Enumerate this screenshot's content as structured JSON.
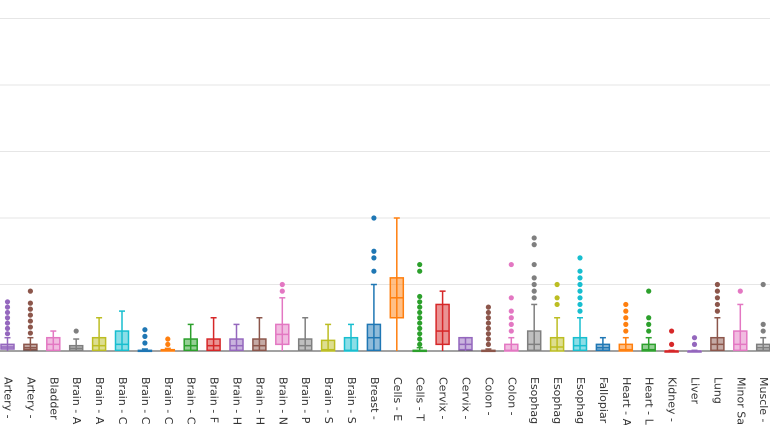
{
  "chart_data": {
    "type": "box",
    "title": "",
    "xlabel": "",
    "ylabel": "",
    "grid": true,
    "gridlines": [
      0,
      1,
      2,
      3,
      4,
      5
    ],
    "ylim": [
      0,
      5.3
    ],
    "categories": [
      {
        "label": "Artery - ",
        "color": "#9467bd",
        "min": 0,
        "q1": 0.03,
        "median": 0.06,
        "q3": 0.1,
        "max": 0.2,
        "outliers": [
          0.26,
          0.34,
          0.42,
          0.5,
          0.58,
          0.66,
          0.74
        ]
      },
      {
        "label": "Artery - ",
        "color": "#8c564b",
        "min": 0,
        "q1": 0.02,
        "median": 0.05,
        "q3": 0.1,
        "max": 0.2,
        "outliers": [
          0.27,
          0.36,
          0.45,
          0.54,
          0.63,
          0.72,
          0.9
        ]
      },
      {
        "label": "Bladder",
        "color": "#e377c2",
        "min": 0,
        "q1": 0.01,
        "median": 0.1,
        "q3": 0.2,
        "max": 0.3,
        "outliers": []
      },
      {
        "label": "Brain - A",
        "color": "#7f7f7f",
        "min": 0,
        "q1": 0.01,
        "median": 0.04,
        "q3": 0.08,
        "max": 0.18,
        "outliers": [
          0.3
        ]
      },
      {
        "label": "Brain - A",
        "color": "#bcbd22",
        "min": 0,
        "q1": 0.01,
        "median": 0.08,
        "q3": 0.2,
        "max": 0.5,
        "outliers": []
      },
      {
        "label": "Brain - C",
        "color": "#17becf",
        "min": 0,
        "q1": 0.01,
        "median": 0.1,
        "q3": 0.3,
        "max": 0.6,
        "outliers": []
      },
      {
        "label": "Brain - C",
        "color": "#1f77b4",
        "min": 0,
        "q1": 0,
        "median": 0,
        "q3": 0.01,
        "max": 0.03,
        "outliers": [
          0.12,
          0.22,
          0.32
        ]
      },
      {
        "label": "Brain - C",
        "color": "#ff7f0e",
        "min": 0,
        "q1": 0,
        "median": 0.01,
        "q3": 0.02,
        "max": 0.04,
        "outliers": [
          0.1,
          0.18
        ]
      },
      {
        "label": "Brain - C",
        "color": "#2ca02c",
        "min": 0,
        "q1": 0.01,
        "median": 0.08,
        "q3": 0.18,
        "max": 0.4,
        "outliers": []
      },
      {
        "label": "Brain - F",
        "color": "#d62728",
        "min": 0,
        "q1": 0.01,
        "median": 0.08,
        "q3": 0.18,
        "max": 0.5,
        "outliers": []
      },
      {
        "label": "Brain - H",
        "color": "#9467bd",
        "min": 0,
        "q1": 0.01,
        "median": 0.08,
        "q3": 0.18,
        "max": 0.4,
        "outliers": []
      },
      {
        "label": "Brain - H",
        "color": "#8c564b",
        "min": 0,
        "q1": 0.01,
        "median": 0.08,
        "q3": 0.18,
        "max": 0.5,
        "outliers": []
      },
      {
        "label": "Brain - N",
        "color": "#e377c2",
        "min": 0,
        "q1": 0.1,
        "median": 0.25,
        "q3": 0.4,
        "max": 0.8,
        "outliers": [
          0.9,
          1.0
        ]
      },
      {
        "label": "Brain - P",
        "color": "#7f7f7f",
        "min": 0,
        "q1": 0.01,
        "median": 0.08,
        "q3": 0.18,
        "max": 0.5,
        "outliers": []
      },
      {
        "label": "Brain - S",
        "color": "#bcbd22",
        "min": 0,
        "q1": 0,
        "median": 0.02,
        "q3": 0.16,
        "max": 0.4,
        "outliers": []
      },
      {
        "label": "Brain - S",
        "color": "#17becf",
        "min": 0,
        "q1": 0,
        "median": 0.01,
        "q3": 0.2,
        "max": 0.4,
        "outliers": []
      },
      {
        "label": "Breast - ",
        "color": "#1f77b4",
        "min": 0,
        "q1": 0.01,
        "median": 0.2,
        "q3": 0.4,
        "max": 1.0,
        "outliers": [
          1.2,
          1.4,
          1.5,
          2.0
        ]
      },
      {
        "label": "Cells - E",
        "color": "#ff7f0e",
        "min": 0,
        "q1": 0.5,
        "median": 0.8,
        "q3": 1.1,
        "max": 2.0,
        "outliers": []
      },
      {
        "label": "Cells - T",
        "color": "#2ca02c",
        "min": 0,
        "q1": 0,
        "median": 0,
        "q3": 0.01,
        "max": 0.05,
        "outliers": [
          0.1,
          0.18,
          0.26,
          0.34,
          0.42,
          0.5,
          0.58,
          0.66,
          0.74,
          0.82,
          1.2,
          1.3
        ]
      },
      {
        "label": "Cervix - ",
        "color": "#d62728",
        "min": 0,
        "q1": 0.1,
        "median": 0.3,
        "q3": 0.7,
        "max": 0.9,
        "outliers": []
      },
      {
        "label": "Cervix - ",
        "color": "#9467bd",
        "min": 0,
        "q1": 0.02,
        "median": 0.1,
        "q3": 0.2,
        "max": 0.2,
        "outliers": []
      },
      {
        "label": "Colon - ",
        "color": "#8c564b",
        "min": 0,
        "q1": 0,
        "median": 0,
        "q3": 0.01,
        "max": 0.03,
        "outliers": [
          0.1,
          0.18,
          0.26,
          0.34,
          0.42,
          0.5,
          0.58,
          0.66
        ]
      },
      {
        "label": "Colon - ",
        "color": "#e377c2",
        "min": 0,
        "q1": 0,
        "median": 0.01,
        "q3": 0.1,
        "max": 0.2,
        "outliers": [
          0.3,
          0.4,
          0.5,
          0.6,
          0.8,
          1.3
        ]
      },
      {
        "label": "Esophag",
        "color": "#7f7f7f",
        "min": 0,
        "q1": 0.01,
        "median": 0.1,
        "q3": 0.3,
        "max": 0.7,
        "outliers": [
          0.8,
          0.9,
          1.0,
          1.1,
          1.3,
          1.6,
          1.7
        ]
      },
      {
        "label": "Esophag",
        "color": "#bcbd22",
        "min": 0,
        "q1": 0,
        "median": 0.06,
        "q3": 0.2,
        "max": 0.5,
        "outliers": [
          0.7,
          0.8,
          1.0
        ]
      },
      {
        "label": "Esophag",
        "color": "#17becf",
        "min": 0,
        "q1": 0.01,
        "median": 0.08,
        "q3": 0.2,
        "max": 0.5,
        "outliers": [
          0.6,
          0.7,
          0.8,
          0.9,
          1.0,
          1.1,
          1.2,
          1.4
        ]
      },
      {
        "label": "Fallopiar",
        "color": "#1f77b4",
        "min": 0,
        "q1": 0.01,
        "median": 0.05,
        "q3": 0.1,
        "max": 0.2,
        "outliers": []
      },
      {
        "label": "Heart - A",
        "color": "#ff7f0e",
        "min": 0,
        "q1": 0,
        "median": 0.02,
        "q3": 0.1,
        "max": 0.2,
        "outliers": [
          0.3,
          0.4,
          0.5,
          0.6,
          0.7
        ]
      },
      {
        "label": "Heart - L",
        "color": "#2ca02c",
        "min": 0,
        "q1": 0,
        "median": 0.02,
        "q3": 0.1,
        "max": 0.2,
        "outliers": [
          0.3,
          0.4,
          0.5,
          0.9
        ]
      },
      {
        "label": "Kidney - ",
        "color": "#d62728",
        "min": 0,
        "q1": 0,
        "median": 0,
        "q3": 0,
        "max": 0.01,
        "outliers": [
          0.1,
          0.3
        ]
      },
      {
        "label": "Liver",
        "color": "#9467bd",
        "min": 0,
        "q1": 0,
        "median": 0,
        "q3": 0,
        "max": 0.01,
        "outliers": [
          0.1,
          0.2
        ]
      },
      {
        "label": "Lung",
        "color": "#8c564b",
        "min": 0,
        "q1": 0.01,
        "median": 0.1,
        "q3": 0.2,
        "max": 0.5,
        "outliers": [
          0.6,
          0.7,
          0.8,
          0.9,
          1.0
        ]
      },
      {
        "label": "Minor Sa",
        "color": "#e377c2",
        "min": 0,
        "q1": 0.01,
        "median": 0.1,
        "q3": 0.3,
        "max": 0.7,
        "outliers": [
          0.9
        ]
      },
      {
        "label": "Muscle - ",
        "color": "#7f7f7f",
        "min": 0,
        "q1": 0.01,
        "median": 0.05,
        "q3": 0.1,
        "max": 0.2,
        "outliers": [
          0.3,
          0.4,
          1.0
        ]
      }
    ]
  }
}
